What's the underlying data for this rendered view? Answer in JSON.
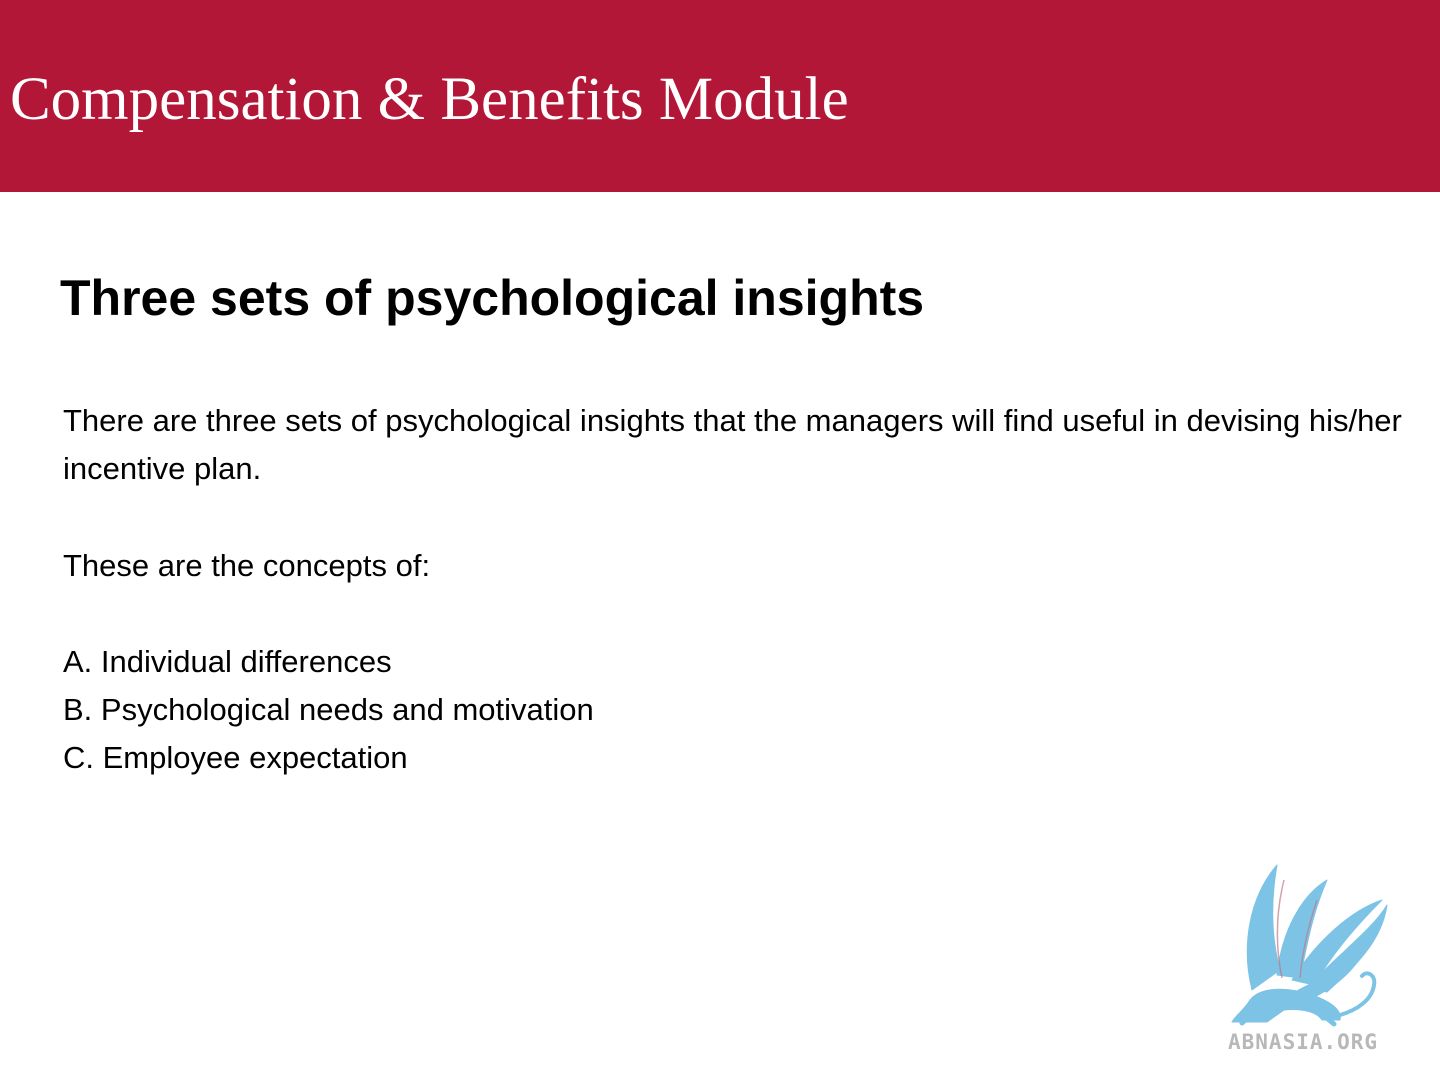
{
  "header": {
    "title": "Compensation & Benefits Module",
    "background_color": "#b31737"
  },
  "slide": {
    "heading": "Three sets of psychological insights",
    "intro": "There are three sets of psychological insights that the managers will find useful in devising his/her incentive plan.",
    "concepts_lead": "These are the concepts of:",
    "concepts": [
      "A. Individual differences",
      "B. Psychological needs and motivation",
      "C. Employee expectation"
    ]
  },
  "watermark": {
    "text": "ABNASIA.ORG",
    "icon": "griffin-logo-icon",
    "color": "#7cc3e6"
  }
}
